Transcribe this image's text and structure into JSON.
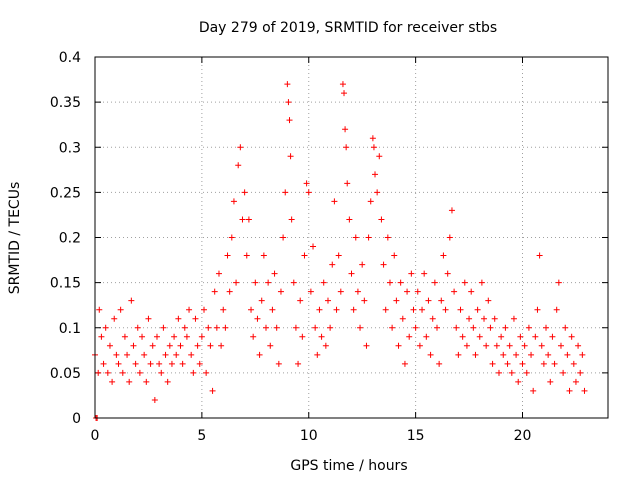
{
  "chart_data": {
    "type": "scatter",
    "title": "Day 279 of 2019, SRMTID for receiver stbs",
    "xlabel": "GPS time / hours",
    "ylabel": "SRMTID / TECUs",
    "xlim": [
      0,
      24
    ],
    "ylim": [
      0,
      0.4
    ],
    "xticks": [
      0,
      5,
      10,
      15,
      20
    ],
    "xtick_labels": [
      "0",
      "5",
      "10",
      "15",
      "20"
    ],
    "yticks": [
      0,
      0.05,
      0.1,
      0.15,
      0.2,
      0.25,
      0.3,
      0.35,
      0.4
    ],
    "ytick_labels": [
      "0",
      "0.05",
      "0.1",
      "0.15",
      "0.2",
      "0.25",
      "0.3",
      "0.35",
      "0.4"
    ],
    "grid": true,
    "marker": "+",
    "color": "#ff0000",
    "series": [
      {
        "name": "stbs",
        "points": [
          [
            0.0,
            0.07
          ],
          [
            0.05,
            0.0
          ],
          [
            0.1,
            0.0
          ],
          [
            0.15,
            0.05
          ],
          [
            0.2,
            0.12
          ],
          [
            0.3,
            0.09
          ],
          [
            0.4,
            0.06
          ],
          [
            0.5,
            0.1
          ],
          [
            0.6,
            0.05
          ],
          [
            0.7,
            0.08
          ],
          [
            0.8,
            0.04
          ],
          [
            0.9,
            0.11
          ],
          [
            1.0,
            0.07
          ],
          [
            1.1,
            0.06
          ],
          [
            1.2,
            0.12
          ],
          [
            1.3,
            0.05
          ],
          [
            1.4,
            0.09
          ],
          [
            1.5,
            0.07
          ],
          [
            1.6,
            0.04
          ],
          [
            1.7,
            0.13
          ],
          [
            1.8,
            0.08
          ],
          [
            1.9,
            0.06
          ],
          [
            2.0,
            0.1
          ],
          [
            2.1,
            0.05
          ],
          [
            2.2,
            0.09
          ],
          [
            2.3,
            0.07
          ],
          [
            2.4,
            0.04
          ],
          [
            2.5,
            0.11
          ],
          [
            2.6,
            0.06
          ],
          [
            2.7,
            0.08
          ],
          [
            2.8,
            0.02
          ],
          [
            2.9,
            0.09
          ],
          [
            3.0,
            0.06
          ],
          [
            3.1,
            0.05
          ],
          [
            3.2,
            0.1
          ],
          [
            3.3,
            0.07
          ],
          [
            3.4,
            0.04
          ],
          [
            3.5,
            0.08
          ],
          [
            3.6,
            0.06
          ],
          [
            3.7,
            0.09
          ],
          [
            3.8,
            0.07
          ],
          [
            3.9,
            0.11
          ],
          [
            4.0,
            0.08
          ],
          [
            4.1,
            0.06
          ],
          [
            4.2,
            0.1
          ],
          [
            4.3,
            0.09
          ],
          [
            4.4,
            0.12
          ],
          [
            4.5,
            0.07
          ],
          [
            4.6,
            0.05
          ],
          [
            4.7,
            0.11
          ],
          [
            4.8,
            0.08
          ],
          [
            4.9,
            0.06
          ],
          [
            5.0,
            0.09
          ],
          [
            5.1,
            0.12
          ],
          [
            5.2,
            0.05
          ],
          [
            5.3,
            0.1
          ],
          [
            5.4,
            0.08
          ],
          [
            5.5,
            0.03
          ],
          [
            5.6,
            0.14
          ],
          [
            5.7,
            0.1
          ],
          [
            5.8,
            0.16
          ],
          [
            5.9,
            0.08
          ],
          [
            6.0,
            0.12
          ],
          [
            6.1,
            0.1
          ],
          [
            6.2,
            0.18
          ],
          [
            6.3,
            0.14
          ],
          [
            6.4,
            0.2
          ],
          [
            6.5,
            0.24
          ],
          [
            6.6,
            0.15
          ],
          [
            6.7,
            0.28
          ],
          [
            6.8,
            0.3
          ],
          [
            6.9,
            0.22
          ],
          [
            7.0,
            0.25
          ],
          [
            7.1,
            0.18
          ],
          [
            7.2,
            0.22
          ],
          [
            7.3,
            0.12
          ],
          [
            7.4,
            0.09
          ],
          [
            7.5,
            0.15
          ],
          [
            7.6,
            0.11
          ],
          [
            7.7,
            0.07
          ],
          [
            7.8,
            0.13
          ],
          [
            7.9,
            0.18
          ],
          [
            8.0,
            0.1
          ],
          [
            8.1,
            0.15
          ],
          [
            8.2,
            0.08
          ],
          [
            8.3,
            0.12
          ],
          [
            8.4,
            0.16
          ],
          [
            8.5,
            0.1
          ],
          [
            8.6,
            0.06
          ],
          [
            8.7,
            0.14
          ],
          [
            8.8,
            0.2
          ],
          [
            8.9,
            0.25
          ],
          [
            9.0,
            0.37
          ],
          [
            9.05,
            0.35
          ],
          [
            9.1,
            0.33
          ],
          [
            9.15,
            0.29
          ],
          [
            9.2,
            0.22
          ],
          [
            9.3,
            0.15
          ],
          [
            9.4,
            0.1
          ],
          [
            9.5,
            0.06
          ],
          [
            9.6,
            0.13
          ],
          [
            9.7,
            0.09
          ],
          [
            9.8,
            0.18
          ],
          [
            9.9,
            0.26
          ],
          [
            10.0,
            0.25
          ],
          [
            10.1,
            0.14
          ],
          [
            10.2,
            0.19
          ],
          [
            10.3,
            0.1
          ],
          [
            10.4,
            0.07
          ],
          [
            10.5,
            0.12
          ],
          [
            10.6,
            0.09
          ],
          [
            10.7,
            0.15
          ],
          [
            10.8,
            0.08
          ],
          [
            10.9,
            0.13
          ],
          [
            11.0,
            0.1
          ],
          [
            11.1,
            0.17
          ],
          [
            11.2,
            0.24
          ],
          [
            11.3,
            0.12
          ],
          [
            11.4,
            0.18
          ],
          [
            11.5,
            0.14
          ],
          [
            11.6,
            0.37
          ],
          [
            11.65,
            0.36
          ],
          [
            11.7,
            0.32
          ],
          [
            11.75,
            0.3
          ],
          [
            11.8,
            0.26
          ],
          [
            11.9,
            0.22
          ],
          [
            12.0,
            0.16
          ],
          [
            12.1,
            0.12
          ],
          [
            12.2,
            0.2
          ],
          [
            12.3,
            0.14
          ],
          [
            12.4,
            0.1
          ],
          [
            12.5,
            0.17
          ],
          [
            12.6,
            0.13
          ],
          [
            12.7,
            0.08
          ],
          [
            12.8,
            0.2
          ],
          [
            12.9,
            0.24
          ],
          [
            13.0,
            0.31
          ],
          [
            13.05,
            0.3
          ],
          [
            13.1,
            0.27
          ],
          [
            13.2,
            0.25
          ],
          [
            13.3,
            0.29
          ],
          [
            13.4,
            0.22
          ],
          [
            13.5,
            0.17
          ],
          [
            13.6,
            0.12
          ],
          [
            13.7,
            0.2
          ],
          [
            13.8,
            0.15
          ],
          [
            13.9,
            0.1
          ],
          [
            14.0,
            0.18
          ],
          [
            14.1,
            0.13
          ],
          [
            14.2,
            0.08
          ],
          [
            14.3,
            0.15
          ],
          [
            14.4,
            0.11
          ],
          [
            14.5,
            0.06
          ],
          [
            14.6,
            0.14
          ],
          [
            14.7,
            0.09
          ],
          [
            14.8,
            0.16
          ],
          [
            14.9,
            0.12
          ],
          [
            15.0,
            0.1
          ],
          [
            15.1,
            0.14
          ],
          [
            15.2,
            0.08
          ],
          [
            15.3,
            0.12
          ],
          [
            15.4,
            0.16
          ],
          [
            15.5,
            0.09
          ],
          [
            15.6,
            0.13
          ],
          [
            15.7,
            0.07
          ],
          [
            15.8,
            0.11
          ],
          [
            15.9,
            0.15
          ],
          [
            16.0,
            0.1
          ],
          [
            16.1,
            0.06
          ],
          [
            16.2,
            0.13
          ],
          [
            16.3,
            0.18
          ],
          [
            16.4,
            0.12
          ],
          [
            16.5,
            0.16
          ],
          [
            16.6,
            0.2
          ],
          [
            16.7,
            0.23
          ],
          [
            16.8,
            0.14
          ],
          [
            16.9,
            0.1
          ],
          [
            17.0,
            0.07
          ],
          [
            17.1,
            0.12
          ],
          [
            17.2,
            0.09
          ],
          [
            17.3,
            0.15
          ],
          [
            17.4,
            0.08
          ],
          [
            17.5,
            0.11
          ],
          [
            17.6,
            0.14
          ],
          [
            17.7,
            0.1
          ],
          [
            17.8,
            0.07
          ],
          [
            17.9,
            0.12
          ],
          [
            18.0,
            0.09
          ],
          [
            18.1,
            0.15
          ],
          [
            18.2,
            0.11
          ],
          [
            18.3,
            0.08
          ],
          [
            18.4,
            0.13
          ],
          [
            18.5,
            0.1
          ],
          [
            18.6,
            0.06
          ],
          [
            18.7,
            0.11
          ],
          [
            18.8,
            0.08
          ],
          [
            18.9,
            0.05
          ],
          [
            19.0,
            0.09
          ],
          [
            19.1,
            0.07
          ],
          [
            19.2,
            0.1
          ],
          [
            19.3,
            0.06
          ],
          [
            19.4,
            0.08
          ],
          [
            19.5,
            0.05
          ],
          [
            19.6,
            0.11
          ],
          [
            19.7,
            0.07
          ],
          [
            19.8,
            0.04
          ],
          [
            19.9,
            0.09
          ],
          [
            20.0,
            0.06
          ],
          [
            20.1,
            0.08
          ],
          [
            20.2,
            0.05
          ],
          [
            20.3,
            0.1
          ],
          [
            20.4,
            0.07
          ],
          [
            20.5,
            0.03
          ],
          [
            20.6,
            0.09
          ],
          [
            20.7,
            0.12
          ],
          [
            20.8,
            0.18
          ],
          [
            20.9,
            0.08
          ],
          [
            21.0,
            0.06
          ],
          [
            21.1,
            0.1
          ],
          [
            21.2,
            0.07
          ],
          [
            21.3,
            0.04
          ],
          [
            21.4,
            0.09
          ],
          [
            21.5,
            0.06
          ],
          [
            21.6,
            0.12
          ],
          [
            21.7,
            0.15
          ],
          [
            21.8,
            0.08
          ],
          [
            21.9,
            0.05
          ],
          [
            22.0,
            0.1
          ],
          [
            22.1,
            0.07
          ],
          [
            22.2,
            0.03
          ],
          [
            22.3,
            0.09
          ],
          [
            22.4,
            0.06
          ],
          [
            22.5,
            0.04
          ],
          [
            22.6,
            0.08
          ],
          [
            22.7,
            0.05
          ],
          [
            22.8,
            0.07
          ],
          [
            22.9,
            0.03
          ]
        ]
      }
    ]
  }
}
